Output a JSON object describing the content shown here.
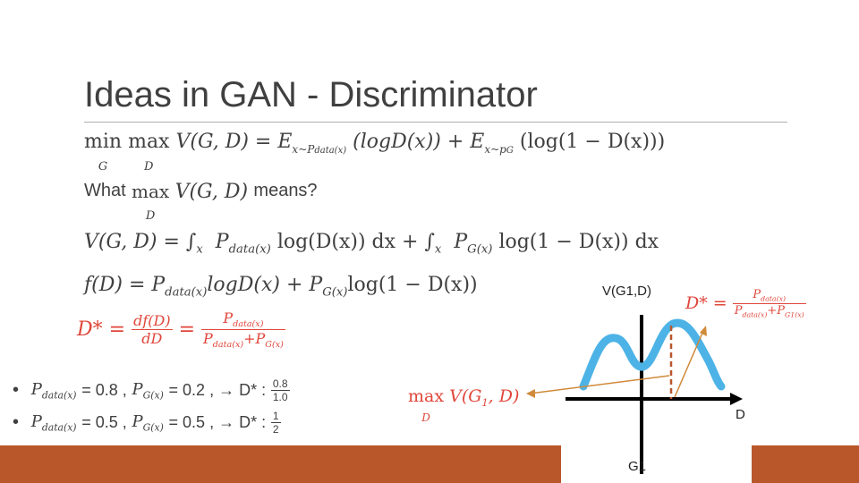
{
  "slide": {
    "title": "Ideas in GAN - Discriminator"
  },
  "lines": {
    "minimax": "min max V(G, D) = E x~P data(x) (logD(x)) + E x~p G (log(1 − D(x)))",
    "minimax_parts": {
      "lead": "min",
      "lead_sub": "G",
      "lead2": "max",
      "lead2_sub": "D",
      "body": "V(G, D) = E",
      "e1_sub": "x~P",
      "e1_subsub": "data(x)",
      "mid": "(logD(x)) + E",
      "e2_sub": "x~p",
      "e2_subsub": "G",
      "tail": "(log(1 − D(x)))"
    },
    "question": {
      "pre": "What",
      "max": "max",
      "max_sub": "D",
      "expr": "V(G, D)",
      "post": "means?"
    },
    "integral": {
      "lhs": "V(G, D) = ∫",
      "int1_sub": "x",
      "p1": "P",
      "p1_sub": "data(x)",
      "t1": "log(D(x)) dx + ∫",
      "int2_sub": "x",
      "p2": "P",
      "p2_sub": "G(x)",
      "t2": "log(1 − D(x)) dx"
    },
    "fD": {
      "lhs": "f(D) = P",
      "p1_sub": "data(x)",
      "t1": "logD(x) + P",
      "p2_sub": "G(x)",
      "t2": "log(1 − D(x))"
    },
    "dstar": {
      "lhs": "D* =",
      "frac1_num": "df(D)",
      "frac1_den": "dD",
      "eq": "=",
      "frac2_num": "P",
      "frac2_num_sub": "data(x)",
      "frac2_den_a": "P",
      "frac2_den_a_sub": "data(x)",
      "frac2_den_plus": "+P",
      "frac2_den_b_sub": "G(x)"
    }
  },
  "bullets": [
    {
      "p_data": "P",
      "p_data_sub": "data(x)",
      "eq1": "= 0.8 ,",
      "p_g": "P",
      "p_g_sub": "G(x)",
      "eq2": "= 0.2 , → D* :",
      "frac_num": "0.8",
      "frac_den": "1.0"
    },
    {
      "p_data": "P",
      "p_data_sub": "data(x)",
      "eq1": "= 0.5 ,",
      "p_g": "P",
      "p_g_sub": "G(x)",
      "eq2": "= 0.5 , → D* :",
      "frac_num": "1",
      "frac_den": "2"
    }
  ],
  "figure": {
    "y_label": "V(G1,D)",
    "x_label": "D",
    "bottom_label": "G1",
    "max_label": "max",
    "max_sub": "D",
    "max_expr": "V(G",
    "max_expr_sub": "1",
    "max_expr_tail": ", D)",
    "dstar_label": "D* =",
    "dstar_num": "P",
    "dstar_num_sub": "data(x)",
    "dstar_den_a": "P",
    "dstar_den_a_sub": "data(x)",
    "dstar_den_plus": "+P",
    "dstar_den_b_sub": "G1(x)"
  },
  "colors": {
    "title": "#404040",
    "red_formula": "#e0463a",
    "curve": "#4db3e6",
    "arrow": "#d08a3a",
    "dashed": "#b9572b",
    "bar": "#b9572b"
  }
}
